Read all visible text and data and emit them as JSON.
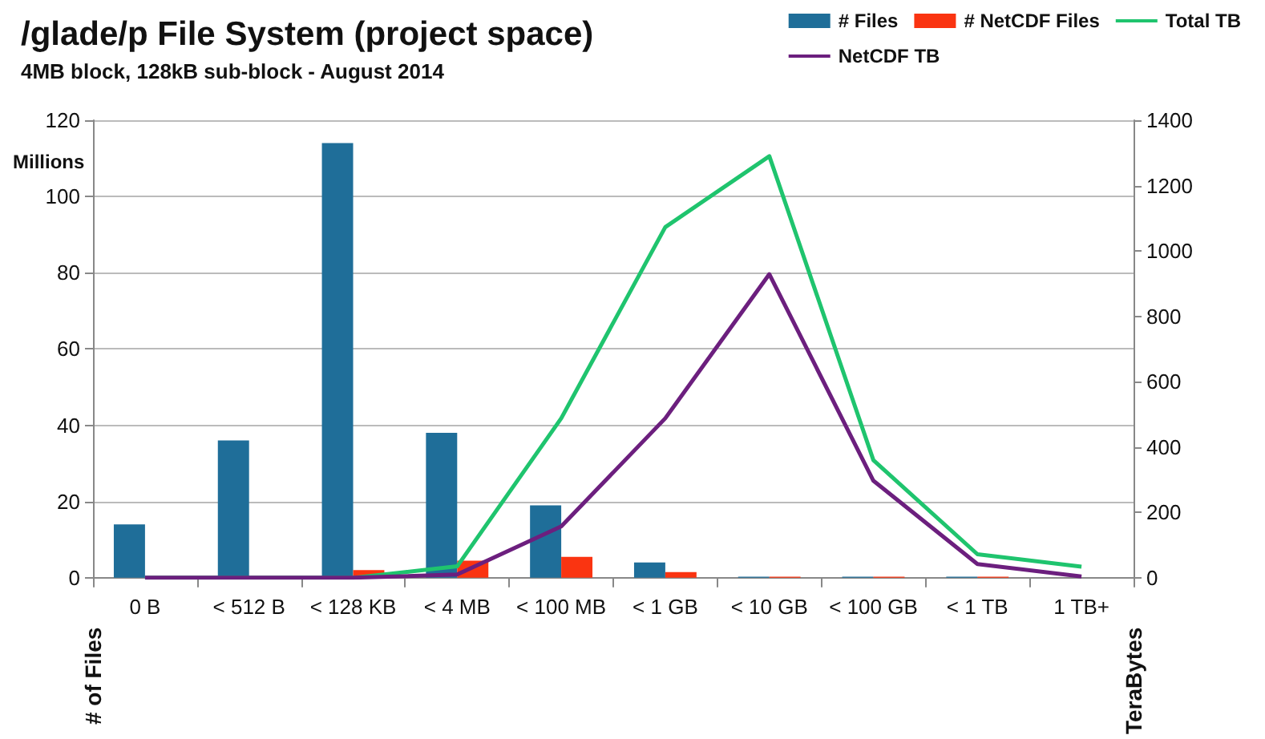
{
  "chart_data": {
    "type": "bar",
    "title": "/glade/p File System (project space)",
    "subtitle": "4MB block, 128kB sub-block - August 2014",
    "categories": [
      "0 B",
      "< 512 B",
      "< 128 KB",
      "< 4 MB",
      "< 100 MB",
      "< 1 GB",
      "< 10 GB",
      "< 100 GB",
      "< 1 TB",
      "1 TB+"
    ],
    "series": [
      {
        "name": "# Files",
        "color": "#1f6e99",
        "values": [
          14,
          36,
          114,
          38,
          19,
          4,
          0.3,
          0.3,
          0.3,
          null
        ]
      },
      {
        "name": "# NetCDF Files",
        "color": "#fa3411",
        "values": [
          null,
          null,
          2,
          4.5,
          5.5,
          1.5,
          0.3,
          0.3,
          0.3,
          null
        ]
      },
      {
        "name": "Total TB",
        "type": "line",
        "axis": "y2",
        "color": "#1fc46e",
        "values": [
          0,
          0,
          0,
          35,
          488,
          1073,
          1290,
          360,
          72,
          34
        ]
      },
      {
        "name": "NetCDF TB",
        "type": "line",
        "axis": "y2",
        "color": "#6c1f7e",
        "values": [
          0,
          0,
          0,
          10,
          157,
          488,
          929,
          297,
          42,
          4
        ]
      }
    ],
    "ylabel": "# of Files",
    "y2label": "TeraBytes",
    "annotations": [
      "Millions"
    ],
    "ylim": [
      0,
      120
    ],
    "yticks": [
      0,
      20,
      40,
      60,
      80,
      100,
      120
    ],
    "y2lim": [
      0,
      1400
    ],
    "y2ticks": [
      0,
      200,
      400,
      600,
      800,
      1000,
      1200,
      1400
    ],
    "grid": "y",
    "legend": "top right",
    "marker": "none",
    "line_style": "solid"
  }
}
